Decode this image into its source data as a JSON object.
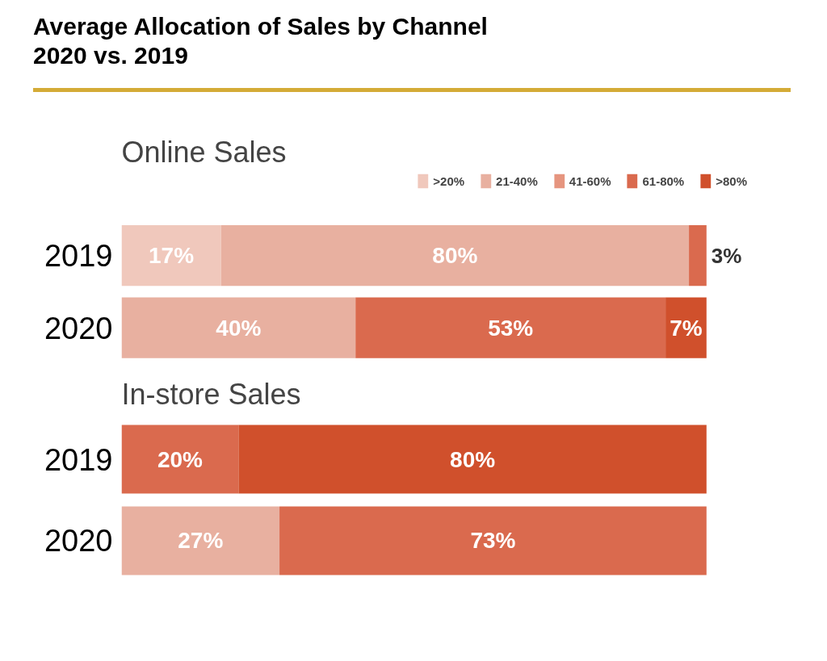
{
  "chart_data": [
    {
      "type": "bar",
      "orientation": "horizontal",
      "stacked": true,
      "title": "Average Allocation of Sales by Channel\n2020 vs. 2019",
      "subtitle": "Online Sales",
      "categories": [
        "2019",
        "2020"
      ],
      "tick_labels": "y",
      "grid": false,
      "legend": "top right",
      "series": [
        {
          "name": ">20%",
          "color": "#f0c8bc",
          "values": [
            17,
            null
          ],
          "value_labels": [
            "17%",
            null
          ]
        },
        {
          "name": "21-40%",
          "color": "#e8b0a0",
          "values": [
            80,
            40
          ],
          "value_labels": [
            "80%",
            "40%"
          ]
        },
        {
          "name": "41-60%",
          "color": "#e6957f",
          "values": [
            null,
            null
          ],
          "value_labels": [
            null,
            null
          ]
        },
        {
          "name": "61-80%",
          "color": "#da6a4e",
          "values": [
            3,
            53
          ],
          "value_labels": [
            "3%",
            "53%"
          ]
        },
        {
          "name": ">80%",
          "color": "#d0502c",
          "values": [
            null,
            7
          ],
          "value_labels": [
            null,
            "7%"
          ]
        }
      ]
    },
    {
      "type": "bar",
      "orientation": "horizontal",
      "stacked": true,
      "title": "In-store Sales",
      "categories": [
        "2019",
        "2020"
      ],
      "tick_labels": "y",
      "grid": false,
      "series": [
        {
          "color": "#f0c8bc",
          "values": [
            null,
            null
          ],
          "value_labels": [
            null,
            null
          ]
        },
        {
          "color": "#e8b0a0",
          "values": [
            null,
            27
          ],
          "value_labels": [
            null,
            "27%"
          ]
        },
        {
          "color": "#e6957f",
          "values": [
            null,
            null
          ],
          "value_labels": [
            null,
            null
          ]
        },
        {
          "color": "#da6a4e",
          "values": [
            20,
            73
          ],
          "value_labels": [
            "20%",
            "73%"
          ]
        },
        {
          "color": "#d0502c",
          "values": [
            80,
            null
          ],
          "value_labels": [
            "80%",
            null
          ]
        }
      ]
    }
  ]
}
